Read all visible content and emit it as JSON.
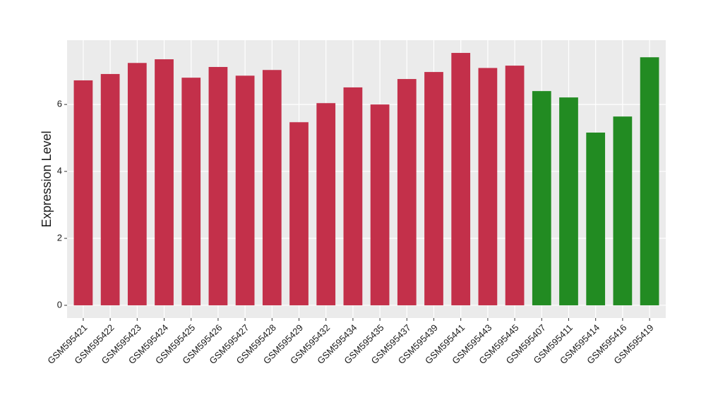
{
  "chart_data": {
    "type": "bar",
    "y_label": "Expression Level",
    "categories": [
      "GSM595421",
      "GSM595422",
      "GSM595423",
      "GSM595424",
      "GSM595425",
      "GSM595426",
      "GSM595427",
      "GSM595428",
      "GSM595429",
      "GSM595432",
      "GSM595434",
      "GSM595435",
      "GSM595437",
      "GSM595439",
      "GSM595441",
      "GSM595443",
      "GSM595445",
      "GSM595407",
      "GSM595411",
      "GSM595414",
      "GSM595416",
      "GSM595419"
    ],
    "values": [
      6.72,
      6.91,
      7.24,
      7.35,
      6.8,
      7.12,
      6.86,
      7.03,
      5.47,
      6.04,
      6.51,
      6.0,
      6.76,
      6.97,
      7.54,
      7.09,
      7.16,
      6.4,
      6.21,
      5.16,
      5.64,
      7.41
    ],
    "colors": [
      "#c3304a",
      "#c3304a",
      "#c3304a",
      "#c3304a",
      "#c3304a",
      "#c3304a",
      "#c3304a",
      "#c3304a",
      "#c3304a",
      "#c3304a",
      "#c3304a",
      "#c3304a",
      "#c3304a",
      "#c3304a",
      "#c3304a",
      "#c3304a",
      "#c3304a",
      "#228b22",
      "#228b22",
      "#228b22",
      "#228b22",
      "#228b22"
    ],
    "ylim": [
      -0.38,
      7.92
    ],
    "yticks": [
      0,
      2,
      4,
      6
    ],
    "grid": true
  }
}
